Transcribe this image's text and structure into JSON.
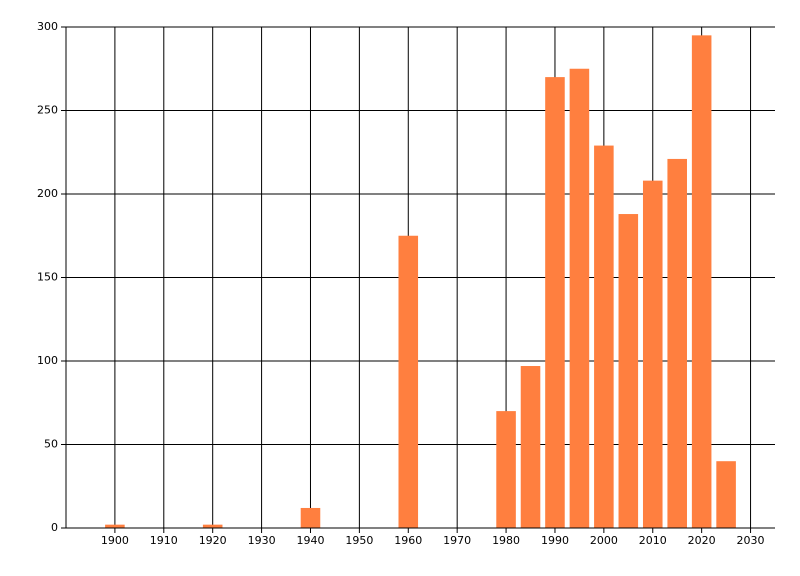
{
  "chart_data": {
    "type": "bar",
    "x": [
      1900,
      1920,
      1940,
      1960,
      1980,
      1985,
      1990,
      1995,
      2000,
      2005,
      2010,
      2015,
      2020,
      2025
    ],
    "values": [
      2,
      2,
      12,
      175,
      70,
      97,
      270,
      275,
      229,
      188,
      208,
      221,
      295,
      40
    ],
    "color": "#ff7f3f",
    "xlim": [
      1890,
      2035
    ],
    "xticks": [
      1900,
      1910,
      1920,
      1930,
      1940,
      1950,
      1960,
      1970,
      1980,
      1990,
      2000,
      2010,
      2020,
      2030
    ],
    "ylim": [
      0,
      300
    ],
    "yticks": [
      0,
      50,
      100,
      150,
      200,
      250,
      300
    ],
    "grid": true
  }
}
